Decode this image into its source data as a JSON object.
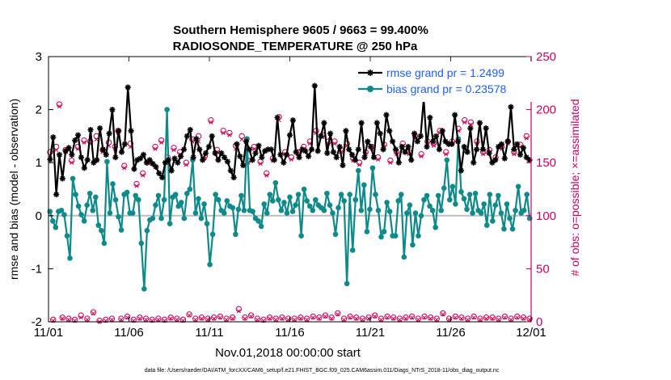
{
  "chart_data": {
    "type": "line",
    "title": [
      "Southern Hemisphere 9605 / 9663 = 99.400%",
      "RADIOSONDE_TEMPERATURE @ 250 hPa"
    ],
    "xlabel": "Nov.01,2018 00:00:00 start",
    "ylabel_left": "rmse and bias (model - observation)",
    "ylabel_right": "# of obs: o=possible; ×=assimilated",
    "footer": "data file: /Users/raeder/DAI/ATM_forcXX/CAM6_setup/f.e21.FHIST_BGC.f09_025.CAM6assim.011/Diags_NTrS_2018-11/obs_diag_output.nc",
    "ylim_left": [
      -2,
      3
    ],
    "ylim_right": [
      0,
      250
    ],
    "xlim": [
      0,
      30
    ],
    "x_ticks": [
      {
        "x": 0,
        "label": "11/01"
      },
      {
        "x": 5,
        "label": "11/06"
      },
      {
        "x": 10,
        "label": "11/11"
      },
      {
        "x": 15,
        "label": "11/16"
      },
      {
        "x": 20,
        "label": "11/21"
      },
      {
        "x": 25,
        "label": "11/26"
      },
      {
        "x": 30,
        "label": "12/01"
      }
    ],
    "y_ticks_left": [
      -2,
      -1,
      0,
      1,
      2,
      3
    ],
    "y_ticks_right": [
      0,
      50,
      100,
      150,
      200,
      250
    ],
    "legend_position": "top-right",
    "series": [
      {
        "name": "rmse grand pr = 1.2499",
        "color": "#000000",
        "marker": "asterisk",
        "values": [
          1.06,
          1.48,
          0.4,
          1.15,
          0.7,
          1.22,
          1.28,
          1.15,
          1.42,
          1.52,
          1.1,
          0.9,
          1.05,
          1.62,
          1.0,
          1.05,
          1.65,
          1.25,
          1.15,
          1.55,
          2.0,
          1.1,
          1.6,
          1.2,
          1.35,
          2.42,
          1.6,
          0.88,
          1.05,
          1.08,
          1.15,
          1.0,
          1.05,
          0.98,
          0.92,
          0.8,
          0.72,
          1.0,
          1.05,
          0.85,
          1.08,
          1.0,
          1.12,
          1.25,
          1.5,
          1.62,
          1.1,
          1.45,
          1.25,
          1.05,
          1.18,
          1.3,
          1.5,
          1.18,
          1.05,
          1.18,
          1.1,
          1.02,
          0.85,
          0.72,
          1.35,
          1.12,
          0.95,
          1.4,
          1.25,
          1.05,
          1.18,
          1.32,
          1.1,
          1.22,
          1.25,
          1.25,
          1.05,
          1.85,
          1.15,
          1.0,
          1.15,
          1.52,
          1.8,
          1.2,
          1.1,
          1.25,
          1.22,
          1.12,
          1.25,
          2.45,
          1.22,
          1.5,
          1.75,
          1.18,
          1.55,
          1.2,
          1.1,
          1.3,
          0.95,
          1.6,
          1.25,
          1.15,
          1.05,
          1.25,
          1.75,
          1.1,
          1.4,
          1.3,
          1.1,
          1.75,
          1.55,
          1.25,
          1.9,
          1.6,
          1.4,
          1.25,
          1.0,
          1.3,
          1.2,
          1.3,
          1.05,
          1.55,
          1.4,
          1.5,
          2.2,
          1.3,
          1.85,
          1.4,
          1.5,
          1.25,
          1.6,
          1.4,
          1.35,
          1.35,
          1.9,
          1.4,
          0.85,
          1.3,
          1.2,
          1.65,
          1.0,
          1.25,
          1.75,
          1.25,
          1.65,
          1.18,
          1.0,
          1.05,
          1.3,
          1.35,
          1.08,
          1.4,
          2.05,
          1.25,
          1.35,
          1.15,
          1.28,
          1.1,
          1.05
        ]
      },
      {
        "name": "bias grand pr = 0.23578",
        "color": "#0e8a8a",
        "marker": "dot",
        "values": [
          0.08,
          -0.1,
          -0.22,
          0.08,
          0.1,
          0.02,
          -0.38,
          -0.8,
          0.7,
          0.4,
          0.18,
          0.02,
          -0.1,
          0.2,
          0.42,
          0.1,
          0.35,
          -0.18,
          -0.28,
          -0.52,
          1.02,
          0.05,
          0.6,
          0.3,
          -0.02,
          -0.27,
          0.4,
          0.44,
          0.05,
          0.05,
          0.38,
          0.3,
          -0.52,
          -1.38,
          -0.28,
          -0.08,
          -0.05,
          0.2,
          0.38,
          -0.05,
          0.3,
          2.0,
          -0.15,
          0.35,
          0.4,
          0.18,
          0.25,
          -0.05,
          0.42,
          0.5,
          1.05,
          0.05,
          0.32,
          -0.05,
          0.22,
          -0.15,
          -0.92,
          -0.35,
          0.4,
          0.3,
          0.1,
          0.05,
          0.28,
          0.18,
          0.15,
          -0.35,
          0.12,
          0.38,
          0.1,
          1.45,
          0.1,
          0.08,
          -0.05,
          -0.1,
          -0.2,
          0.22,
          0.05,
          0.4,
          0.28,
          0.62,
          0.3,
          0.1,
          0.25,
          0.05,
          0.35,
          0.08,
          0.2,
          0.4,
          -0.38,
          0.5,
          0.28,
          0.18,
          0.1,
          0.3,
          0.2,
          0.15,
          0.1,
          0.42,
          0.2,
          0.05,
          -0.35,
          0.15,
          0.4,
          0.28,
          -1.28,
          0.4,
          -0.65,
          0.3,
          0.85,
          0.1,
          0.58,
          -0.3,
          0.12,
          0.9,
          0.4,
          0.1,
          -0.4,
          -0.3,
          0.25,
          0.08,
          -0.38,
          -0.38,
          0.28,
          0.4,
          -0.78,
          0.05,
          0.2,
          -0.55,
          0.05,
          -0.38,
          0.0,
          0.3,
          0.38,
          0.18,
          0.1,
          -0.22,
          0.38,
          0.1,
          0.52,
          1.05,
          0.3,
          0.55,
          0.22,
          1.45,
          0.45,
          0.32,
          0.12,
          0.4,
          0.05,
          0.42,
          0.1,
          0.05,
          0.22,
          -0.18,
          0.4,
          -0.1,
          0.2,
          0.38,
          0.05,
          -0.25,
          0.22,
          -0.05,
          -0.25,
          0.1,
          0.55,
          0.05,
          0.1,
          0.4,
          -0.05
        ]
      }
    ],
    "obs_possible": {
      "marker": "circle",
      "color": "#cc0055",
      "values": [
        160,
        2,
        165,
        205,
        4,
        162,
        3,
        152,
        2,
        165,
        6,
        171,
        3,
        170,
        9,
        175,
        1,
        162,
        2,
        169,
        3,
        165,
        180,
        3,
        147,
        5,
        168,
        2,
        130,
        4,
        140,
        3,
        151,
        2,
        165,
        3,
        171,
        2,
        155,
        4,
        164,
        3,
        160,
        2,
        150,
        7,
        172,
        3,
        175,
        4,
        156,
        3,
        190,
        4,
        162,
        5,
        180,
        3,
        178,
        4,
        166,
        12,
        175,
        4,
        152,
        6,
        165,
        3,
        151,
        2,
        140,
        4,
        154,
        3,
        193,
        4,
        160,
        3,
        155,
        3,
        160,
        4,
        165,
        3,
        170,
        5,
        180,
        4,
        176,
        6,
        170,
        4,
        170,
        8,
        162,
        3,
        168,
        5,
        154,
        4,
        150,
        3,
        160,
        4,
        165,
        6,
        155,
        3,
        167,
        5,
        152,
        4,
        160,
        3,
        168,
        4,
        160,
        5,
        175,
        3,
        158,
        5,
        170,
        4,
        168,
        3,
        180,
        8,
        160,
        3,
        170,
        5,
        182,
        4,
        190,
        3,
        188,
        5,
        170,
        3,
        160,
        4,
        162,
        4,
        155,
        3,
        165,
        5,
        170,
        3,
        160,
        5,
        167,
        4,
        175,
        3
      ]
    },
    "obs_assimilated": {
      "marker": "x",
      "color": "#cc0055",
      "values": [
        157,
        1,
        162,
        203,
        3,
        160,
        2,
        150,
        1,
        163,
        4,
        169,
        2,
        168,
        8,
        172,
        0,
        160,
        1,
        166,
        2,
        163,
        178,
        2,
        145,
        4,
        165,
        1,
        128,
        3,
        138,
        2,
        149,
        1,
        163,
        2,
        169,
        1,
        153,
        3,
        162,
        2,
        158,
        1,
        148,
        6,
        170,
        2,
        170,
        3,
        154,
        2,
        188,
        3,
        160,
        4,
        178,
        2,
        176,
        3,
        163,
        10,
        172,
        3,
        150,
        5,
        163,
        2,
        149,
        1,
        138,
        3,
        152,
        2,
        190,
        3,
        158,
        2,
        153,
        2,
        158,
        3,
        163,
        2,
        168,
        4,
        178,
        3,
        174,
        5,
        168,
        3,
        168,
        7,
        160,
        2,
        166,
        4,
        152,
        3,
        148,
        2,
        158,
        3,
        163,
        5,
        153,
        2,
        165,
        4,
        150,
        3,
        158,
        2,
        166,
        3,
        158,
        4,
        173,
        2,
        156,
        4,
        168,
        3,
        166,
        2,
        178,
        7,
        158,
        2,
        168,
        4,
        180,
        3,
        188,
        2,
        186,
        4,
        168,
        2,
        158,
        3,
        160,
        3,
        153,
        2,
        163,
        4,
        168,
        2,
        158,
        4,
        165,
        3,
        173,
        2
      ]
    }
  }
}
